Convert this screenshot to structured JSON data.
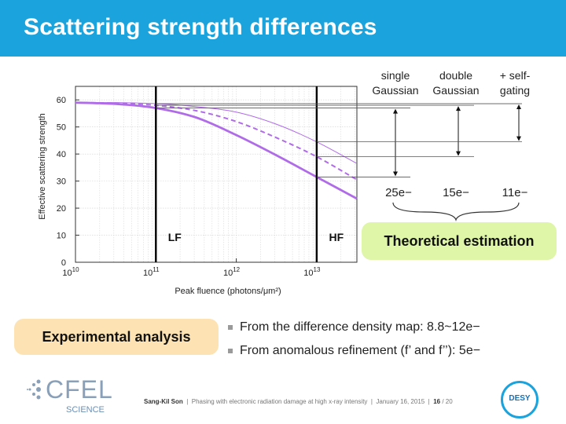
{
  "slide": {
    "title": "Scattering strength differences"
  },
  "chart_data": {
    "type": "line",
    "xlabel": "Peak fluence (photons/μm²)",
    "ylabel": "Effective scattering strength",
    "xscale": "log",
    "xlim_exponent": [
      10,
      13.5
    ],
    "ylim": [
      0,
      65
    ],
    "x_tick_exponents": [
      10,
      11,
      12,
      13
    ],
    "y_ticks": [
      0,
      10,
      20,
      30,
      40,
      50,
      60
    ],
    "grid": true,
    "series": [
      {
        "style": "thin",
        "x_exponent": [
          10,
          10.5,
          11,
          11.5,
          12,
          12.5,
          13,
          13.5
        ],
        "y": [
          59,
          59,
          58.6,
          57.5,
          55.5,
          51,
          44.5,
          36.5
        ]
      },
      {
        "style": "dashed",
        "x_exponent": [
          10,
          10.5,
          11,
          11.5,
          12,
          12.5,
          13,
          13.5
        ],
        "y": [
          59,
          58.8,
          58,
          56,
          52,
          46,
          39,
          30.5
        ]
      },
      {
        "style": "thick",
        "x_exponent": [
          10,
          10.5,
          11,
          11.5,
          12,
          12.5,
          13,
          13.5
        ],
        "y": [
          59,
          58.5,
          57,
          53.5,
          47,
          39.5,
          31.5,
          23.5
        ]
      }
    ],
    "vlines": [
      {
        "label": "LF",
        "x_exponent": 11
      },
      {
        "label": "HF",
        "x_exponent": 13
      }
    ]
  },
  "estimates": {
    "columns": [
      {
        "header_line1": "single",
        "header_line2": "Gaussian",
        "value": "25e−"
      },
      {
        "header_line1": "double",
        "header_line2": "Gaussian",
        "value": "15e−"
      },
      {
        "header_line1": "+ self-",
        "header_line2": "gating",
        "value": "11e−"
      }
    ],
    "label": "Theoretical estimation"
  },
  "experimental": {
    "label": "Experimental analysis",
    "bullets": [
      "From the difference density map: 8.8~12e−",
      "From anomalous refinement (f’ and f’’): 5e−"
    ]
  },
  "footer": {
    "author": "Sang-Kil Son",
    "talk": "Phasing with electronic radiation damage at high x-ray intensity",
    "date": "January 16, 2015",
    "page": "16",
    "total": "/ 20"
  },
  "logos": {
    "cfel": "CFEL",
    "science": "SCIENCE",
    "desy": "DESY"
  },
  "colors": {
    "title_bar": "#1aa3dc",
    "curve": "#b06ce8",
    "green_pill": "#dff5a8",
    "orange_pill": "#fde3b3"
  }
}
